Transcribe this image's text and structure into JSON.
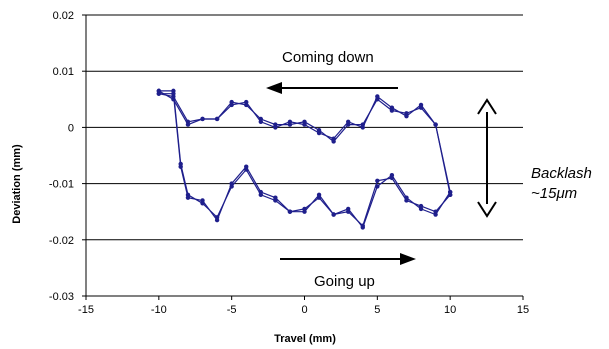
{
  "chart_data": {
    "type": "line",
    "title": "",
    "xlabel": "Travel (mm)",
    "ylabel": "Deviation (mm)",
    "xlim": [
      -15,
      15
    ],
    "ylim": [
      -0.03,
      0.02
    ],
    "x_ticks": [
      "-15",
      "-10",
      "-5",
      "0",
      "5",
      "10",
      "15"
    ],
    "y_ticks": [
      "0.02",
      "0.01",
      "0",
      "-0.01",
      "-0.02",
      "-0.03"
    ],
    "grid": true,
    "series_color": "#1f1f8c",
    "series": [
      {
        "x": [
          -10,
          -9,
          -8.5,
          -8,
          -7,
          -6,
          -5,
          -4,
          -3,
          -2,
          -1,
          0,
          1,
          2,
          3,
          4,
          5,
          6,
          7,
          8,
          9,
          10
        ],
        "y": [
          0.0065,
          0.0065,
          -0.0065,
          -0.012,
          -0.0135,
          -0.016,
          -0.0105,
          -0.0075,
          -0.012,
          -0.013,
          -0.015,
          -0.015,
          -0.012,
          -0.0155,
          -0.0145,
          -0.0178,
          -0.0105,
          -0.0085,
          -0.0125,
          -0.0145,
          -0.0155,
          -0.0115
        ]
      },
      {
        "x": [
          10,
          9,
          8,
          7,
          6,
          5,
          4,
          3,
          2,
          1,
          0,
          -1,
          -2,
          -3,
          -4,
          -5,
          -6,
          -7,
          -8,
          -9,
          -10
        ],
        "y": [
          -0.0115,
          0.0005,
          0.0035,
          0.0025,
          0.003,
          0.005,
          0.0005,
          0.0005,
          -0.0025,
          -0.0005,
          0.001,
          0.0005,
          0.0005,
          0.0015,
          0.004,
          0.0045,
          0.0015,
          0.0015,
          0.001,
          0.0055,
          0.006
        ]
      },
      {
        "x": [
          -10,
          -9,
          -8.5,
          -8,
          -7,
          -6,
          -5,
          -4,
          -3,
          -2,
          -1,
          0,
          1,
          2,
          3,
          4,
          5,
          6,
          7,
          8,
          9,
          10
        ],
        "y": [
          0.006,
          0.006,
          -0.007,
          -0.0125,
          -0.013,
          -0.0165,
          -0.01,
          -0.007,
          -0.0115,
          -0.0125,
          -0.015,
          -0.0145,
          -0.0125,
          -0.0155,
          -0.015,
          -0.0175,
          -0.0095,
          -0.009,
          -0.013,
          -0.014,
          -0.015,
          -0.012
        ]
      },
      {
        "x": [
          10,
          9,
          8,
          7,
          6,
          5,
          4,
          3,
          2,
          1,
          0,
          -1,
          -2,
          -3,
          -4,
          -5,
          -6,
          -7,
          -8,
          -9,
          -10
        ],
        "y": [
          -0.012,
          0.0005,
          0.004,
          0.002,
          0.0035,
          0.0055,
          0.0,
          0.001,
          -0.002,
          -0.001,
          0.0005,
          0.001,
          0.0,
          0.001,
          0.0045,
          0.004,
          0.0015,
          0.0015,
          0.0005,
          0.005,
          0.0065
        ]
      }
    ],
    "annotations": {
      "coming_down": "Coming down",
      "going_up": "Going up",
      "backlash_line1": "Backlash",
      "backlash_line2": "~15μm"
    }
  }
}
